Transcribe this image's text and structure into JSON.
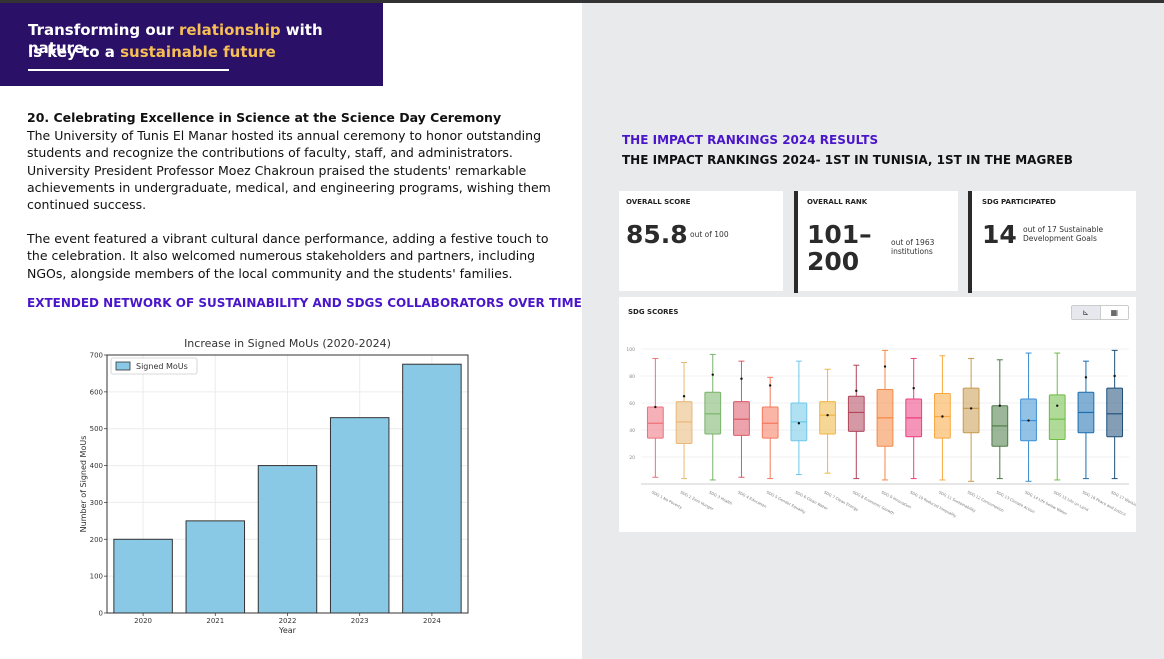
{
  "banner": {
    "line1_pre": "Transforming our ",
    "line1_hl": "relationship",
    "line1_post": " with nature",
    "line2_pre": "is key to a ",
    "line2_hl": "sustainable future"
  },
  "article": {
    "heading": "20. Celebrating Excellence in Science at the Science Day Ceremony",
    "p1_lines": [
      "The University of Tunis El Manar hosted its annual ceremony to honor outstanding",
      "students and recognize the contributions of faculty, staff, and administrators.",
      "University President Professor Moez Chakroun praised the students' remarkable",
      "achievements in undergraduate, medical, and engineering programs, wishing them",
      "continued success."
    ],
    "p2_lines": [
      "The event featured a vibrant cultural dance performance, adding a festive touch to",
      "the celebration. It also welcomed numerous stakeholders and partners, including",
      "NGOs, alongside members of the local community and the students' families."
    ]
  },
  "network_heading": "EXTENDED NETWORK OF SUSTAINABILITY AND SDGS COLLABORATORS OVER TIME",
  "chart_data": [
    {
      "type": "bar",
      "title": "Increase in Signed MoUs (2020-2024)",
      "xlabel": "Year",
      "ylabel": "Number of Signed MoUs",
      "categories": [
        "2020",
        "2021",
        "2022",
        "2023",
        "2024"
      ],
      "series": [
        {
          "name": "Signed MoUs",
          "values": [
            200,
            250,
            400,
            530,
            675
          ]
        }
      ],
      "ylim": [
        0,
        700
      ],
      "yticks": [
        "0",
        "100",
        "200",
        "300",
        "400",
        "500",
        "600",
        "700"
      ],
      "grid": true,
      "legend": "top-left",
      "bar_color": "#89c9e6"
    },
    {
      "type": "box",
      "title": "",
      "ylim": [
        0,
        100
      ],
      "yticks": [
        "20",
        "40",
        "60",
        "80",
        "100"
      ],
      "categories": [
        "SDG 1 No Poverty",
        "SDG 2 Zero Hunger",
        "SDG 3 Health",
        "SDG 4 Education",
        "SDG 5 Gender Equality",
        "SDG 6 Clean Water",
        "SDG 7 Clean Energy",
        "SDG 8 Economic Growth",
        "SDG 9 Innovation",
        "SDG 10 Reduced Inequality",
        "SDG 11 Sustainability",
        "SDG 12 Consumption",
        "SDG 13 Climate Action",
        "SDG 14 Life below Water",
        "SDG 15 Life on Land",
        "SDG 16 Peace and Justice",
        "SDG 17 Working"
      ],
      "boxes": [
        {
          "min": 5,
          "q1": 34,
          "median": 45,
          "q3": 57,
          "max": 93,
          "marker": 57,
          "color": "#ef6f7c"
        },
        {
          "min": 4,
          "q1": 30,
          "median": 46,
          "q3": 61,
          "max": 90,
          "marker": 65,
          "color": "#e9b878"
        },
        {
          "min": 3,
          "q1": 37,
          "median": 52,
          "q3": 68,
          "max": 96,
          "marker": 81,
          "color": "#78b36a"
        },
        {
          "min": 5,
          "q1": 36,
          "median": 48,
          "q3": 61,
          "max": 91,
          "marker": 78,
          "color": "#dc5867"
        },
        {
          "min": 4,
          "q1": 34,
          "median": 45,
          "q3": 57,
          "max": 79,
          "marker": 73,
          "color": "#f5795e"
        },
        {
          "min": 7,
          "q1": 32,
          "median": 46,
          "q3": 60,
          "max": 91,
          "marker": 45,
          "color": "#6ec8ea"
        },
        {
          "min": 8,
          "q1": 37,
          "median": 51,
          "q3": 61,
          "max": 85,
          "marker": 51,
          "color": "#f1b63f"
        },
        {
          "min": 4,
          "q1": 39,
          "median": 53,
          "q3": 65,
          "max": 88,
          "marker": 69,
          "color": "#b1455b"
        },
        {
          "min": 3,
          "q1": 28,
          "median": 49,
          "q3": 70,
          "max": 99,
          "marker": 87,
          "color": "#f48944"
        },
        {
          "min": 4,
          "q1": 35,
          "median": 49,
          "q3": 63,
          "max": 93,
          "marker": 71,
          "color": "#ed3f80"
        },
        {
          "min": 3,
          "q1": 34,
          "median": 50,
          "q3": 67,
          "max": 95,
          "marker": 50,
          "color": "#f9a842"
        },
        {
          "min": 2,
          "q1": 38,
          "median": 56,
          "q3": 71,
          "max": 93,
          "marker": 56,
          "color": "#c89b4e"
        },
        {
          "min": 4,
          "q1": 28,
          "median": 43,
          "q3": 58,
          "max": 92,
          "marker": 58,
          "color": "#4b7a46"
        },
        {
          "min": 2,
          "q1": 32,
          "median": 47,
          "q3": 63,
          "max": 97,
          "marker": 47,
          "color": "#3b8fd4"
        },
        {
          "min": 3,
          "q1": 33,
          "median": 48,
          "q3": 66,
          "max": 97,
          "marker": 58,
          "color": "#6ebc43"
        },
        {
          "min": 4,
          "q1": 38,
          "median": 53,
          "q3": 68,
          "max": 91,
          "marker": 79,
          "color": "#1c6fb0"
        },
        {
          "min": 4,
          "q1": 35,
          "median": 52,
          "q3": 71,
          "max": 99,
          "marker": 80,
          "color": "#1f4f7a"
        }
      ]
    }
  ],
  "impact": {
    "title": "THE IMPACT RANKINGS 2024 RESULTS",
    "subtitle": "THE IMPACT RANKINGS 2024- 1ST IN TUNISIA, 1ST IN THE MAGREB",
    "overall_score": {
      "label": "OVERALL SCORE",
      "value": "85.8",
      "suffix": "out of 100"
    },
    "overall_rank": {
      "label": "OVERALL RANK",
      "value_line1": "101–",
      "value_line2": "200",
      "suffix_line1": "out of 1963",
      "suffix_line2": "institutions"
    },
    "sdg_participated": {
      "label": "SDG PARTICIPATED",
      "value": "14",
      "suffix_line1": "out of 17 Sustainable",
      "suffix_line2": "Development Goals"
    },
    "sdg_scores_label": "SDG SCORES"
  }
}
